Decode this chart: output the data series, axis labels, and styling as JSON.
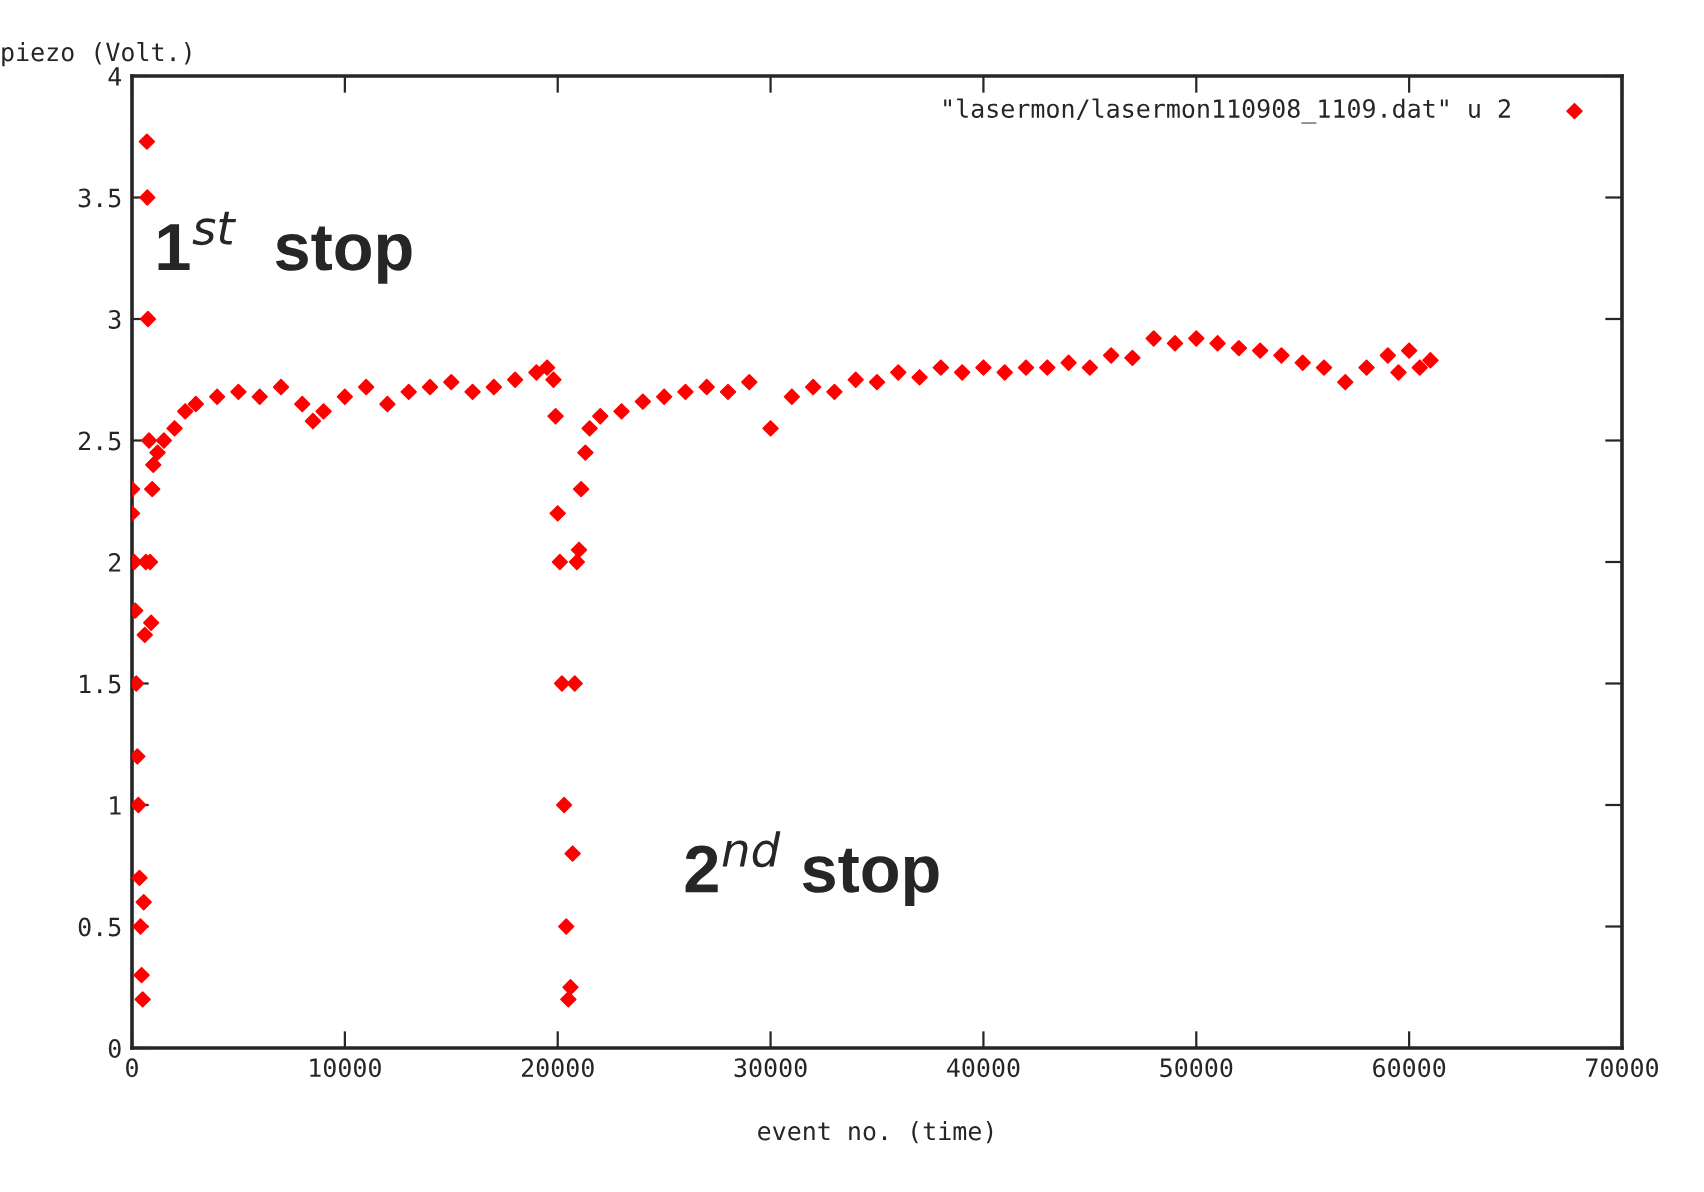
{
  "chart_data": {
    "type": "scatter",
    "xlabel": "event no. (time)",
    "ylabel": "piezo (Volt.)",
    "annotations": [
      "1$^{st}$  stop",
      "2$^{nd}$ stop"
    ],
    "xlim": [
      0,
      70000
    ],
    "xticks": [
      0,
      10000,
      20000,
      30000,
      40000,
      50000,
      60000,
      70000
    ],
    "ylim": [
      0,
      4
    ],
    "yticks": [
      0,
      0.5,
      1,
      1.5,
      2,
      2.5,
      3,
      3.5,
      4
    ],
    "grid": false,
    "legend": "top right",
    "marker": "diamond",
    "series": [
      {
        "name": "\"lasermon/lasermon110908_1109.dat\" u 2",
        "color": "#ff0000",
        "x": [
          0,
          0,
          100,
          150,
          200,
          250,
          300,
          350,
          400,
          450,
          500,
          550,
          600,
          650,
          700,
          720,
          750,
          800,
          850,
          900,
          950,
          1000,
          1200,
          1500,
          2000,
          2500,
          3000,
          4000,
          5000,
          6000,
          7000,
          8000,
          8500,
          9000,
          10000,
          11000,
          12000,
          13000,
          14000,
          15000,
          16000,
          17000,
          18000,
          19000,
          19500,
          19800,
          19900,
          20000,
          20100,
          20200,
          20300,
          20400,
          20500,
          20600,
          20700,
          20800,
          20900,
          21000,
          21100,
          21300,
          21500,
          22000,
          23000,
          24000,
          25000,
          26000,
          27000,
          28000,
          29000,
          30000,
          31000,
          32000,
          33000,
          34000,
          35000,
          36000,
          37000,
          38000,
          39000,
          40000,
          41000,
          42000,
          43000,
          44000,
          45000,
          46000,
          47000,
          48000,
          49000,
          50000,
          51000,
          52000,
          53000,
          54000,
          55000,
          56000,
          57000,
          58000,
          59000,
          59500,
          60000,
          60500,
          61000
        ],
        "values": [
          2.3,
          2.2,
          2.0,
          1.8,
          1.5,
          1.2,
          1.0,
          0.7,
          0.5,
          0.3,
          0.2,
          0.6,
          1.7,
          2.0,
          3.73,
          3.5,
          3.0,
          2.5,
          2.0,
          1.75,
          2.3,
          2.4,
          2.45,
          2.5,
          2.55,
          2.62,
          2.65,
          2.68,
          2.7,
          2.68,
          2.72,
          2.65,
          2.58,
          2.62,
          2.68,
          2.72,
          2.65,
          2.7,
          2.72,
          2.74,
          2.7,
          2.72,
          2.75,
          2.78,
          2.8,
          2.75,
          2.6,
          2.2,
          2.0,
          1.5,
          1.0,
          0.5,
          0.2,
          0.25,
          0.8,
          1.5,
          2.0,
          2.05,
          2.3,
          2.45,
          2.55,
          2.6,
          2.62,
          2.66,
          2.68,
          2.7,
          2.72,
          2.7,
          2.74,
          2.55,
          2.68,
          2.72,
          2.7,
          2.75,
          2.74,
          2.78,
          2.76,
          2.8,
          2.78,
          2.8,
          2.78,
          2.8,
          2.8,
          2.82,
          2.8,
          2.85,
          2.84,
          2.92,
          2.9,
          2.92,
          2.9,
          2.88,
          2.87,
          2.85,
          2.82,
          2.8,
          2.74,
          2.8,
          2.85,
          2.78,
          2.87,
          2.8,
          2.83
        ]
      }
    ]
  }
}
